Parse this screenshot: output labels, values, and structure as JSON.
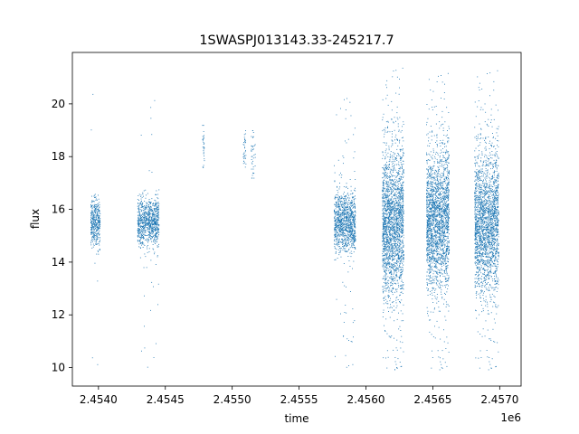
{
  "chart_data": {
    "type": "scatter",
    "title": "1SWASPJ013143.33-245217.7",
    "xlabel": "time",
    "ylabel": "flux",
    "x_offset_label": "1e6",
    "x_tick_labels": [
      "2.4540",
      "2.4545",
      "2.4550",
      "2.4555",
      "2.4560",
      "2.4565",
      "2.4570"
    ],
    "x_ticks": [
      2454000,
      2454500,
      2455000,
      2455500,
      2456000,
      2456500,
      2457000
    ],
    "y_ticks": [
      10,
      12,
      14,
      16,
      18,
      20
    ],
    "xlim": [
      2453805,
      2457160
    ],
    "ylim": [
      9.3,
      21.95
    ],
    "grid": false,
    "marker_color": "#1f77b4",
    "clusters": [
      {
        "x_range": [
          2453940,
          2454010
        ],
        "y_center": 15.5,
        "y_spread": 0.45,
        "n_points": 400,
        "outlier_fraction": 0.03,
        "outlier_range": [
          10,
          20.7
        ]
      },
      {
        "x_range": [
          2454290,
          2454450
        ],
        "y_center": 15.5,
        "y_spread": 0.45,
        "n_points": 900,
        "outlier_fraction": 0.03,
        "outlier_range": [
          10,
          20.4
        ]
      },
      {
        "x_range": [
          2454775,
          2454790
        ],
        "y_center": 18.3,
        "y_spread": 0.5,
        "n_points": 30,
        "outlier_fraction": 0,
        "outlier_range": [
          17.6,
          19.2
        ]
      },
      {
        "x_range": [
          2455080,
          2455100
        ],
        "y_center": 18.2,
        "y_spread": 0.5,
        "n_points": 35,
        "outlier_fraction": 0,
        "outlier_range": [
          17.5,
          19
        ]
      },
      {
        "x_range": [
          2455140,
          2455170
        ],
        "y_center": 18.0,
        "y_spread": 0.5,
        "n_points": 40,
        "outlier_fraction": 0,
        "outlier_range": [
          17.2,
          19
        ]
      },
      {
        "x_range": [
          2455760,
          2455920
        ],
        "y_center": 15.5,
        "y_spread": 0.55,
        "n_points": 1100,
        "outlier_fraction": 0.05,
        "outlier_range": [
          9.9,
          20.5
        ]
      },
      {
        "x_range": [
          2456120,
          2456280
        ],
        "y_center": 15.5,
        "y_spread": 1.4,
        "n_points": 2200,
        "outlier_fraction": 0.06,
        "outlier_range": [
          9.8,
          21.4
        ]
      },
      {
        "x_range": [
          2456450,
          2456620
        ],
        "y_center": 15.6,
        "y_spread": 1.3,
        "n_points": 2200,
        "outlier_fraction": 0.06,
        "outlier_range": [
          9.8,
          21.2
        ]
      },
      {
        "x_range": [
          2456810,
          2456990
        ],
        "y_center": 15.5,
        "y_spread": 1.3,
        "n_points": 2200,
        "outlier_fraction": 0.06,
        "outlier_range": [
          9.8,
          21.3
        ]
      }
    ]
  }
}
